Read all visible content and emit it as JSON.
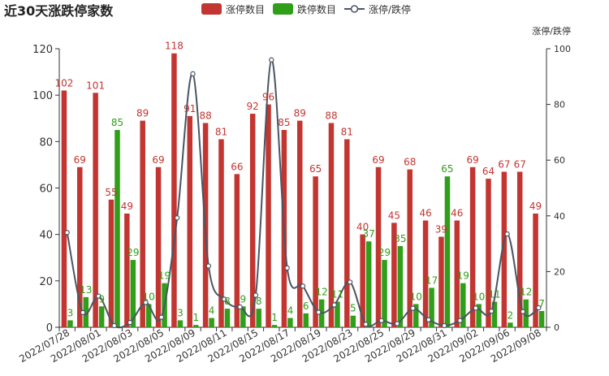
{
  "chart_data": {
    "type": "bar",
    "title": "近30天涨跌停家数",
    "y2label": "涨停/跌停",
    "categories": [
      "2022/07/28",
      "2022/07/29",
      "2022/08/01",
      "2022/08/02",
      "2022/08/03",
      "2022/08/04",
      "2022/08/05",
      "2022/08/08",
      "2022/08/09",
      "2022/08/10",
      "2022/08/11",
      "2022/08/12",
      "2022/08/15",
      "2022/08/16",
      "2022/08/17",
      "2022/08/18",
      "2022/08/19",
      "2022/08/22",
      "2022/08/23",
      "2022/08/24",
      "2022/08/25",
      "2022/08/26",
      "2022/08/29",
      "2022/08/30",
      "2022/08/31",
      "2022/09/01",
      "2022/09/02",
      "2022/09/05",
      "2022/09/06",
      "2022/09/07",
      "2022/09/08"
    ],
    "xtick_labels": [
      "2022/07/28",
      "2022/08/01",
      "2022/08/03",
      "2022/08/05",
      "2022/08/09",
      "2022/08/11",
      "2022/08/15",
      "2022/08/17",
      "2022/08/19",
      "2022/08/23",
      "2022/08/25",
      "2022/08/29",
      "2022/08/31",
      "2022/09/02",
      "2022/09/06",
      "2022/09/08"
    ],
    "xtick_index": [
      0,
      2,
      4,
      6,
      8,
      10,
      12,
      14,
      16,
      18,
      20,
      22,
      24,
      26,
      28,
      30
    ],
    "series": [
      {
        "name": "涨停数目",
        "color": "#c23531",
        "values": [
          102,
          69,
          101,
          55,
          49,
          89,
          69,
          118,
          91,
          88,
          81,
          66,
          92,
          96,
          85,
          89,
          65,
          88,
          81,
          40,
          69,
          45,
          68,
          46,
          39,
          46,
          69,
          64,
          67,
          67,
          49
        ]
      },
      {
        "name": "跌停数目",
        "color": "#2f9e18",
        "values": [
          3,
          13,
          9,
          85,
          29,
          10,
          19,
          3,
          1,
          4,
          8,
          9,
          8,
          1,
          4,
          6,
          12,
          11,
          5,
          37,
          29,
          35,
          10,
          17,
          65,
          19,
          10,
          11,
          2,
          12,
          7
        ]
      },
      {
        "name": "涨停/跌停",
        "color": "#4a5563",
        "axis": "right",
        "values": [
          34,
          5.3,
          11.2,
          0.6,
          1.7,
          8.9,
          3.6,
          39.3,
          91,
          22,
          10.1,
          7.3,
          11.5,
          96,
          21.3,
          14.8,
          5.4,
          8,
          16.2,
          1.1,
          2.4,
          1.3,
          6.8,
          2.7,
          0.6,
          2.4,
          6.9,
          5.8,
          33.5,
          5.6,
          7
        ]
      }
    ],
    "ylim": [
      0,
      120
    ],
    "yticks": [
      0,
      20,
      40,
      60,
      80,
      100,
      120
    ],
    "y2lim": [
      0,
      100
    ],
    "y2ticks": [
      0,
      20,
      40,
      60,
      80,
      100
    ],
    "legend_position": "top-center",
    "grid": false
  }
}
